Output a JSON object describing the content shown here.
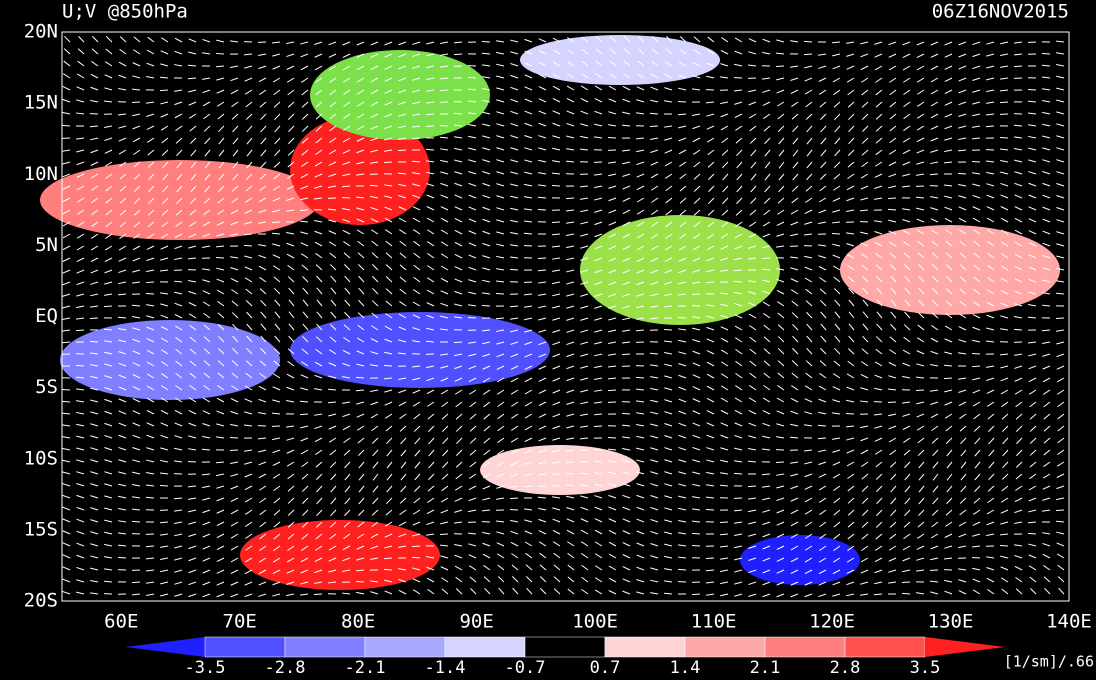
{
  "header": {
    "title": "U;V @850hPa",
    "time": "06Z16NOV2015"
  },
  "lat_labels": [
    "20N",
    "15N",
    "10N",
    "5N",
    "EQ",
    "5S",
    "10S",
    "15S",
    "20S"
  ],
  "lon_labels": [
    "60E",
    "70E",
    "80E",
    "90E",
    "100E",
    "110E",
    "120E",
    "130E",
    "140E"
  ],
  "colorbar": {
    "labels": [
      "-3.5",
      "-2.8",
      "-2.1",
      "-1.4",
      "-0.7",
      "0.7",
      "1.4",
      "2.1",
      "2.8",
      "3.5"
    ],
    "colors": [
      "#2020ff",
      "#5050ff",
      "#7f7fff",
      "#a8a8ff",
      "#d4d4ff",
      "#000000",
      "#ffd4d4",
      "#ffa8a8",
      "#ff7f7f",
      "#ff5050",
      "#ff2020"
    ],
    "unit": "[1/sm]/.66"
  }
}
